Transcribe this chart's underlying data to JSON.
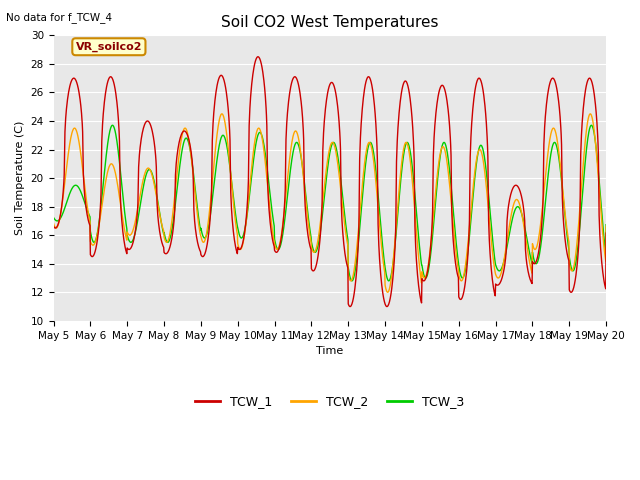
{
  "title": "Soil CO2 West Temperatures",
  "no_data_text": "No data for f_TCW_4",
  "annotation_text": "VR_soilco2",
  "xlabel": "Time",
  "ylabel": "Soil Temperature (C)",
  "ylim": [
    10,
    30
  ],
  "yticks": [
    10,
    12,
    14,
    16,
    18,
    20,
    22,
    24,
    26,
    28,
    30
  ],
  "xtick_labels": [
    "May 5",
    "May 6",
    "May 7",
    "May 8",
    "May 9",
    "May 10",
    "May 11",
    "May 12",
    "May 13",
    "May 14",
    "May 15",
    "May 16",
    "May 17",
    "May 18",
    "May 19",
    "May 20"
  ],
  "colors": {
    "TCW_1": "#cc0000",
    "TCW_2": "#ffa500",
    "TCW_3": "#00cc00",
    "background": "#e8e8e8",
    "annotation_bg": "#ffffcc",
    "annotation_border": "#cc8800"
  },
  "title_fontsize": 11,
  "axis_label_fontsize": 8,
  "tick_fontsize": 7.5,
  "legend_fontsize": 9
}
